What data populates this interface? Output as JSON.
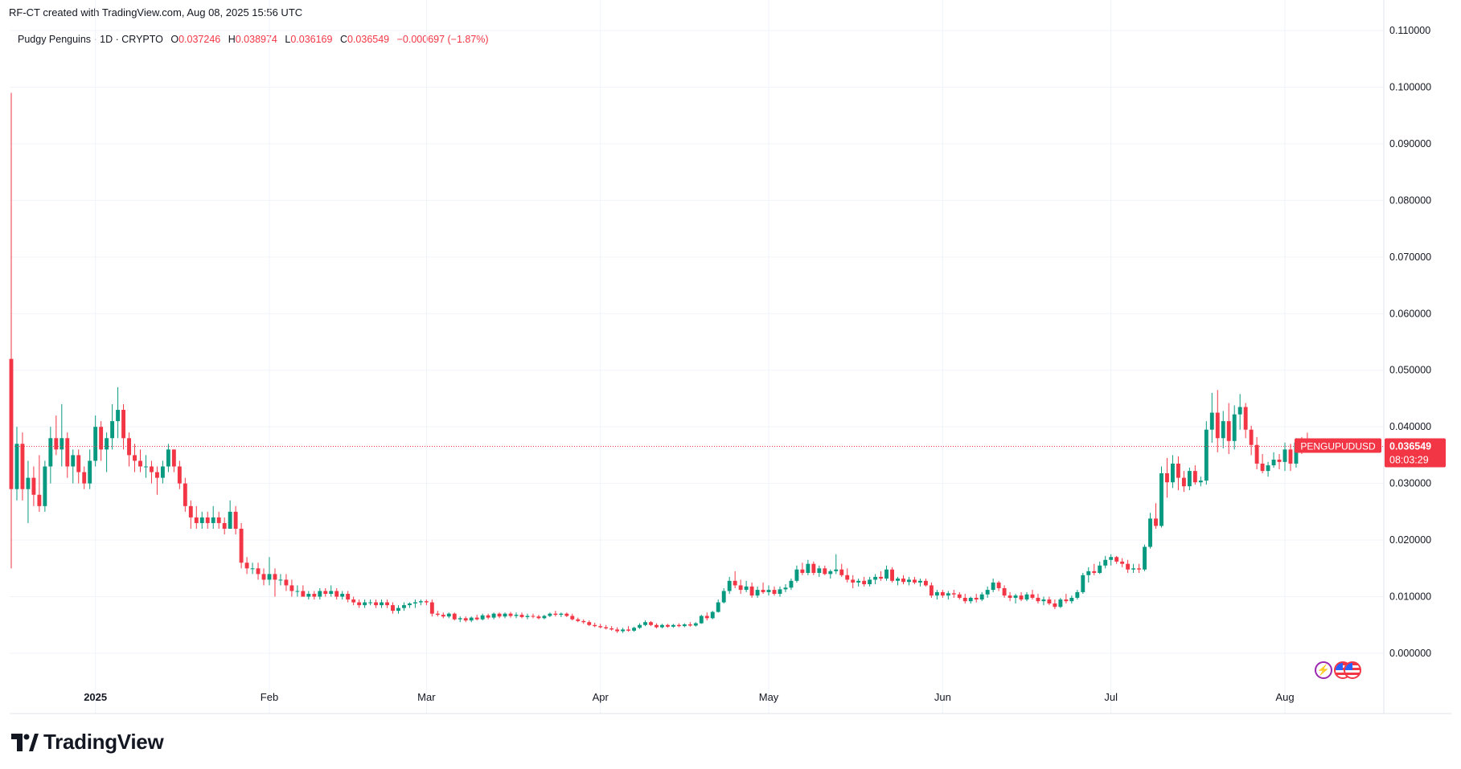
{
  "header": {
    "credit": "RF-CT created with TradingView.com, Aug 08, 2025 15:56 UTC"
  },
  "legend": {
    "symbol": "Pudgy Penguins · 1D · CRYPTO",
    "open_label": "O",
    "open": "0.037246",
    "high_label": "H",
    "high": "0.038974",
    "low_label": "L",
    "low": "0.036169",
    "close_label": "C",
    "close": "0.036549",
    "change": "−0.000697 (−1.87%)"
  },
  "price_tag": {
    "ticker": "PENGUPUDUSD",
    "price": "0.036549",
    "countdown": "08:03:29"
  },
  "brand": {
    "name": "TradingView"
  },
  "colors": {
    "up": "#089981",
    "down": "#f23645",
    "grid": "#f0f3fa",
    "axis_text": "#131722",
    "price_line": "#f23645"
  },
  "icons": [
    "lightning-icon",
    "us-flag-icon",
    "us-flag-icon"
  ],
  "chart_data": {
    "type": "candlestick",
    "symbol": "PENGUPUDUSD",
    "interval": "1D",
    "ylim": [
      -0.004,
      0.111
    ],
    "yticks": [
      "0.000000",
      "0.010000",
      "0.020000",
      "0.030000",
      "0.040000",
      "0.050000",
      "0.060000",
      "0.070000",
      "0.080000",
      "0.090000",
      "0.100000",
      "0.110000"
    ],
    "x_labels": [
      {
        "label": "2025",
        "date": "2025-01-01"
      },
      {
        "label": "Feb",
        "date": "2025-02-01"
      },
      {
        "label": "Mar",
        "date": "2025-03-01"
      },
      {
        "label": "Apr",
        "date": "2025-04-01"
      },
      {
        "label": "May",
        "date": "2025-05-01"
      },
      {
        "label": "Jun",
        "date": "2025-06-01"
      },
      {
        "label": "Jul",
        "date": "2025-07-01"
      },
      {
        "label": "Aug",
        "date": "2025-08-01"
      }
    ],
    "first_date": "2024-12-17",
    "last_price": 0.036549,
    "ohlc": [
      [
        0.052,
        0.099,
        0.015,
        0.029
      ],
      [
        0.029,
        0.04,
        0.027,
        0.037
      ],
      [
        0.037,
        0.039,
        0.027,
        0.029
      ],
      [
        0.029,
        0.034,
        0.023,
        0.031
      ],
      [
        0.031,
        0.033,
        0.026,
        0.028
      ],
      [
        0.028,
        0.035,
        0.025,
        0.026
      ],
      [
        0.026,
        0.034,
        0.025,
        0.033
      ],
      [
        0.033,
        0.04,
        0.03,
        0.038
      ],
      [
        0.038,
        0.042,
        0.035,
        0.036
      ],
      [
        0.036,
        0.044,
        0.033,
        0.038
      ],
      [
        0.038,
        0.039,
        0.031,
        0.033
      ],
      [
        0.033,
        0.036,
        0.03,
        0.035
      ],
      [
        0.035,
        0.036,
        0.03,
        0.032
      ],
      [
        0.032,
        0.033,
        0.029,
        0.03
      ],
      [
        0.03,
        0.036,
        0.029,
        0.034
      ],
      [
        0.034,
        0.042,
        0.033,
        0.04
      ],
      [
        0.04,
        0.041,
        0.034,
        0.036
      ],
      [
        0.036,
        0.039,
        0.032,
        0.038
      ],
      [
        0.038,
        0.044,
        0.036,
        0.041
      ],
      [
        0.041,
        0.047,
        0.038,
        0.043
      ],
      [
        0.043,
        0.044,
        0.036,
        0.038
      ],
      [
        0.038,
        0.039,
        0.033,
        0.035
      ],
      [
        0.035,
        0.037,
        0.032,
        0.034
      ],
      [
        0.034,
        0.036,
        0.032,
        0.033
      ],
      [
        0.033,
        0.035,
        0.031,
        0.033
      ],
      [
        0.033,
        0.034,
        0.03,
        0.032
      ],
      [
        0.032,
        0.033,
        0.028,
        0.031
      ],
      [
        0.031,
        0.034,
        0.03,
        0.033
      ],
      [
        0.033,
        0.037,
        0.032,
        0.036
      ],
      [
        0.036,
        0.036,
        0.032,
        0.033
      ],
      [
        0.033,
        0.034,
        0.029,
        0.03
      ],
      [
        0.03,
        0.031,
        0.025,
        0.026
      ],
      [
        0.026,
        0.027,
        0.022,
        0.024
      ],
      [
        0.024,
        0.026,
        0.022,
        0.023
      ],
      [
        0.023,
        0.025,
        0.022,
        0.024
      ],
      [
        0.024,
        0.025,
        0.022,
        0.023
      ],
      [
        0.023,
        0.026,
        0.022,
        0.024
      ],
      [
        0.024,
        0.025,
        0.022,
        0.023
      ],
      [
        0.023,
        0.024,
        0.021,
        0.022
      ],
      [
        0.022,
        0.027,
        0.022,
        0.025
      ],
      [
        0.025,
        0.026,
        0.021,
        0.022
      ],
      [
        0.022,
        0.023,
        0.015,
        0.016
      ],
      [
        0.016,
        0.017,
        0.014,
        0.015
      ],
      [
        0.015,
        0.016,
        0.014,
        0.015
      ],
      [
        0.015,
        0.016,
        0.013,
        0.014
      ],
      [
        0.014,
        0.015,
        0.012,
        0.013
      ],
      [
        0.013,
        0.017,
        0.012,
        0.014
      ],
      [
        0.014,
        0.015,
        0.01,
        0.013
      ],
      [
        0.013,
        0.014,
        0.012,
        0.013
      ],
      [
        0.013,
        0.014,
        0.011,
        0.012
      ],
      [
        0.012,
        0.013,
        0.01,
        0.011
      ],
      [
        0.011,
        0.012,
        0.01,
        0.011
      ],
      [
        0.011,
        0.012,
        0.01,
        0.01
      ],
      [
        0.01,
        0.011,
        0.0095,
        0.0105
      ],
      [
        0.0105,
        0.011,
        0.0095,
        0.01
      ],
      [
        0.01,
        0.0115,
        0.0095,
        0.011
      ],
      [
        0.011,
        0.0115,
        0.01,
        0.0105
      ],
      [
        0.0105,
        0.012,
        0.01,
        0.011
      ],
      [
        0.011,
        0.0115,
        0.0095,
        0.01
      ],
      [
        0.01,
        0.011,
        0.0095,
        0.0105
      ],
      [
        0.0105,
        0.011,
        0.009,
        0.0095
      ],
      [
        0.0095,
        0.01,
        0.0085,
        0.009
      ],
      [
        0.009,
        0.0095,
        0.008,
        0.0085
      ],
      [
        0.0085,
        0.0095,
        0.008,
        0.009
      ],
      [
        0.009,
        0.0095,
        0.0085,
        0.009
      ],
      [
        0.009,
        0.0095,
        0.008,
        0.0085
      ],
      [
        0.0085,
        0.0095,
        0.008,
        0.009
      ],
      [
        0.009,
        0.0095,
        0.008,
        0.0085
      ],
      [
        0.0085,
        0.009,
        0.007,
        0.0075
      ],
      [
        0.0075,
        0.0085,
        0.007,
        0.008
      ],
      [
        0.008,
        0.009,
        0.0075,
        0.0085
      ],
      [
        0.0085,
        0.009,
        0.008,
        0.0088
      ],
      [
        0.0088,
        0.0095,
        0.008,
        0.009
      ],
      [
        0.009,
        0.0095,
        0.0085,
        0.0092
      ],
      [
        0.0092,
        0.0095,
        0.0085,
        0.009
      ],
      [
        0.009,
        0.0095,
        0.0065,
        0.007
      ],
      [
        0.007,
        0.0075,
        0.0065,
        0.0068
      ],
      [
        0.0068,
        0.0072,
        0.0062,
        0.0065
      ],
      [
        0.0065,
        0.0072,
        0.0062,
        0.007
      ],
      [
        0.007,
        0.0072,
        0.0058,
        0.006
      ],
      [
        0.006,
        0.0065,
        0.0055,
        0.0062
      ],
      [
        0.0062,
        0.0065,
        0.0055,
        0.0058
      ],
      [
        0.0058,
        0.0065,
        0.0055,
        0.0063
      ],
      [
        0.0063,
        0.0068,
        0.0058,
        0.006
      ],
      [
        0.006,
        0.007,
        0.0058,
        0.0067
      ],
      [
        0.0067,
        0.007,
        0.006,
        0.0063
      ],
      [
        0.0063,
        0.0072,
        0.006,
        0.007
      ],
      [
        0.007,
        0.0072,
        0.0062,
        0.0065
      ],
      [
        0.0065,
        0.0072,
        0.0062,
        0.007
      ],
      [
        0.007,
        0.0073,
        0.0063,
        0.0066
      ],
      [
        0.0066,
        0.0072,
        0.0062,
        0.0068
      ],
      [
        0.0068,
        0.0072,
        0.0062,
        0.0064
      ],
      [
        0.0064,
        0.007,
        0.006,
        0.0066
      ],
      [
        0.0066,
        0.007,
        0.0062,
        0.0065
      ],
      [
        0.0065,
        0.0068,
        0.006,
        0.0062
      ],
      [
        0.0062,
        0.0068,
        0.006,
        0.0066
      ],
      [
        0.0066,
        0.0072,
        0.0064,
        0.007
      ],
      [
        0.007,
        0.0075,
        0.0065,
        0.0068
      ],
      [
        0.0068,
        0.0072,
        0.0064,
        0.007
      ],
      [
        0.007,
        0.0072,
        0.0064,
        0.0066
      ],
      [
        0.0066,
        0.007,
        0.0058,
        0.006
      ],
      [
        0.006,
        0.0063,
        0.0055,
        0.0057
      ],
      [
        0.0057,
        0.006,
        0.0052,
        0.0055
      ],
      [
        0.0055,
        0.0058,
        0.0048,
        0.005
      ],
      [
        0.005,
        0.0054,
        0.0046,
        0.0048
      ],
      [
        0.0048,
        0.0052,
        0.0044,
        0.0046
      ],
      [
        0.0046,
        0.005,
        0.0042,
        0.0044
      ],
      [
        0.0044,
        0.0048,
        0.004,
        0.0042
      ],
      [
        0.0042,
        0.0046,
        0.0036,
        0.0039
      ],
      [
        0.0039,
        0.0045,
        0.0036,
        0.0042
      ],
      [
        0.0042,
        0.0048,
        0.0038,
        0.004
      ],
      [
        0.004,
        0.0047,
        0.0038,
        0.0045
      ],
      [
        0.0045,
        0.0053,
        0.0043,
        0.005
      ],
      [
        0.005,
        0.0058,
        0.0048,
        0.0055
      ],
      [
        0.0055,
        0.0057,
        0.0048,
        0.005
      ],
      [
        0.005,
        0.0053,
        0.0044,
        0.0046
      ],
      [
        0.0046,
        0.0052,
        0.0044,
        0.005
      ],
      [
        0.005,
        0.0052,
        0.0045,
        0.0047
      ],
      [
        0.0047,
        0.0052,
        0.0045,
        0.005
      ],
      [
        0.005,
        0.0053,
        0.0046,
        0.0048
      ],
      [
        0.0048,
        0.0053,
        0.0046,
        0.0051
      ],
      [
        0.0051,
        0.0055,
        0.0047,
        0.0049
      ],
      [
        0.0049,
        0.0055,
        0.0047,
        0.0053
      ],
      [
        0.0053,
        0.0068,
        0.0052,
        0.0066
      ],
      [
        0.0066,
        0.0072,
        0.0058,
        0.0062
      ],
      [
        0.0062,
        0.0075,
        0.006,
        0.0073
      ],
      [
        0.0073,
        0.0095,
        0.0072,
        0.009
      ],
      [
        0.009,
        0.0115,
        0.0088,
        0.011
      ],
      [
        0.011,
        0.0135,
        0.0105,
        0.0128
      ],
      [
        0.0128,
        0.0145,
        0.0115,
        0.012
      ],
      [
        0.012,
        0.013,
        0.0105,
        0.0112
      ],
      [
        0.0112,
        0.0128,
        0.0108,
        0.0118
      ],
      [
        0.0118,
        0.0125,
        0.0098,
        0.0102
      ],
      [
        0.0102,
        0.0118,
        0.0098,
        0.0112
      ],
      [
        0.0112,
        0.0125,
        0.0105,
        0.0108
      ],
      [
        0.0108,
        0.012,
        0.0102,
        0.0112
      ],
      [
        0.0112,
        0.0118,
        0.0102,
        0.0105
      ],
      [
        0.0105,
        0.0118,
        0.01,
        0.0113
      ],
      [
        0.0113,
        0.0122,
        0.0108,
        0.0116
      ],
      [
        0.0116,
        0.0132,
        0.0112,
        0.0128
      ],
      [
        0.0128,
        0.0155,
        0.0125,
        0.0148
      ],
      [
        0.0148,
        0.016,
        0.0138,
        0.0142
      ],
      [
        0.0142,
        0.0165,
        0.0138,
        0.0158
      ],
      [
        0.0158,
        0.0162,
        0.0138,
        0.0142
      ],
      [
        0.0142,
        0.0155,
        0.0135,
        0.015
      ],
      [
        0.015,
        0.0155,
        0.0138,
        0.014
      ],
      [
        0.014,
        0.0148,
        0.0132,
        0.0145
      ],
      [
        0.0145,
        0.0175,
        0.014,
        0.0148
      ],
      [
        0.0148,
        0.0158,
        0.0135,
        0.0138
      ],
      [
        0.0138,
        0.015,
        0.0125,
        0.013
      ],
      [
        0.013,
        0.0138,
        0.0115,
        0.0125
      ],
      [
        0.0125,
        0.0132,
        0.0118,
        0.0128
      ],
      [
        0.0128,
        0.0135,
        0.0118,
        0.0122
      ],
      [
        0.0122,
        0.0135,
        0.0118,
        0.013
      ],
      [
        0.013,
        0.014,
        0.0122,
        0.0135
      ],
      [
        0.0135,
        0.0145,
        0.0128,
        0.0132
      ],
      [
        0.0132,
        0.0155,
        0.0128,
        0.0148
      ],
      [
        0.0148,
        0.0152,
        0.0125,
        0.0128
      ],
      [
        0.0128,
        0.0135,
        0.012,
        0.0132
      ],
      [
        0.0132,
        0.0138,
        0.0122,
        0.0126
      ],
      [
        0.0126,
        0.0135,
        0.012,
        0.013
      ],
      [
        0.013,
        0.0135,
        0.0122,
        0.0125
      ],
      [
        0.0125,
        0.0132,
        0.0118,
        0.0128
      ],
      [
        0.0128,
        0.0132,
        0.0118,
        0.012
      ],
      [
        0.012,
        0.0125,
        0.0098,
        0.0102
      ],
      [
        0.0102,
        0.0112,
        0.0095,
        0.0108
      ],
      [
        0.0108,
        0.0112,
        0.0098,
        0.0102
      ],
      [
        0.0102,
        0.011,
        0.0095,
        0.0106
      ],
      [
        0.0106,
        0.0112,
        0.0098,
        0.0104
      ],
      [
        0.0104,
        0.0108,
        0.0095,
        0.0098
      ],
      [
        0.0098,
        0.0105,
        0.0088,
        0.0092
      ],
      [
        0.0092,
        0.01,
        0.0088,
        0.0098
      ],
      [
        0.0098,
        0.0105,
        0.009,
        0.0095
      ],
      [
        0.0095,
        0.0108,
        0.0092,
        0.0104
      ],
      [
        0.0104,
        0.0118,
        0.0098,
        0.0112
      ],
      [
        0.0112,
        0.0132,
        0.0108,
        0.0125
      ],
      [
        0.0125,
        0.0128,
        0.011,
        0.0115
      ],
      [
        0.0115,
        0.012,
        0.0098,
        0.0102
      ],
      [
        0.0102,
        0.0108,
        0.0092,
        0.0098
      ],
      [
        0.0098,
        0.0105,
        0.0088,
        0.0102
      ],
      [
        0.0102,
        0.0108,
        0.0092,
        0.0095
      ],
      [
        0.0095,
        0.0108,
        0.0092,
        0.0104
      ],
      [
        0.0104,
        0.0112,
        0.0095,
        0.0098
      ],
      [
        0.0098,
        0.0105,
        0.0088,
        0.0092
      ],
      [
        0.0092,
        0.01,
        0.0085,
        0.0095
      ],
      [
        0.0095,
        0.01,
        0.0085,
        0.0088
      ],
      [
        0.0088,
        0.0095,
        0.0078,
        0.0082
      ],
      [
        0.0082,
        0.0098,
        0.008,
        0.0095
      ],
      [
        0.0095,
        0.0105,
        0.0088,
        0.0092
      ],
      [
        0.0092,
        0.0102,
        0.0088,
        0.0098
      ],
      [
        0.0098,
        0.0112,
        0.0095,
        0.0108
      ],
      [
        0.0108,
        0.0142,
        0.0105,
        0.0138
      ],
      [
        0.0138,
        0.0152,
        0.0125,
        0.0145
      ],
      [
        0.0145,
        0.0158,
        0.0138,
        0.0142
      ],
      [
        0.0142,
        0.0162,
        0.014,
        0.0155
      ],
      [
        0.0155,
        0.0172,
        0.015,
        0.0165
      ],
      [
        0.0165,
        0.0175,
        0.0155,
        0.017
      ],
      [
        0.017,
        0.0172,
        0.0158,
        0.0162
      ],
      [
        0.0162,
        0.0168,
        0.0152,
        0.0158
      ],
      [
        0.0158,
        0.0165,
        0.0142,
        0.0148
      ],
      [
        0.0148,
        0.0158,
        0.0142,
        0.015
      ],
      [
        0.015,
        0.0158,
        0.0142,
        0.0148
      ],
      [
        0.0148,
        0.0192,
        0.0145,
        0.0188
      ],
      [
        0.0188,
        0.0248,
        0.0185,
        0.0238
      ],
      [
        0.0238,
        0.0265,
        0.022,
        0.0225
      ],
      [
        0.0225,
        0.033,
        0.0222,
        0.0318
      ],
      [
        0.0318,
        0.0345,
        0.0275,
        0.0302
      ],
      [
        0.0302,
        0.035,
        0.0292,
        0.0335
      ],
      [
        0.0335,
        0.0348,
        0.0288,
        0.031
      ],
      [
        0.031,
        0.0322,
        0.0285,
        0.0295
      ],
      [
        0.0295,
        0.0328,
        0.0288,
        0.0322
      ],
      [
        0.0322,
        0.0332,
        0.0298,
        0.0302
      ],
      [
        0.0302,
        0.0312,
        0.0295,
        0.0305
      ],
      [
        0.0305,
        0.041,
        0.0298,
        0.0395
      ],
      [
        0.0395,
        0.046,
        0.0372,
        0.0425
      ],
      [
        0.0425,
        0.0465,
        0.0355,
        0.038
      ],
      [
        0.038,
        0.0428,
        0.0362,
        0.041
      ],
      [
        0.041,
        0.0442,
        0.0352,
        0.0375
      ],
      [
        0.0375,
        0.0438,
        0.036,
        0.0422
      ],
      [
        0.0422,
        0.0458,
        0.0395,
        0.0435
      ],
      [
        0.0435,
        0.0442,
        0.038,
        0.0395
      ],
      [
        0.0395,
        0.0402,
        0.035,
        0.0368
      ],
      [
        0.0368,
        0.0382,
        0.0325,
        0.0335
      ],
      [
        0.0335,
        0.0352,
        0.0318,
        0.0322
      ],
      [
        0.0322,
        0.0338,
        0.0312,
        0.0332
      ],
      [
        0.0332,
        0.0355,
        0.0328,
        0.0342
      ],
      [
        0.0342,
        0.0352,
        0.0325,
        0.0338
      ],
      [
        0.0338,
        0.0372,
        0.0322,
        0.036
      ],
      [
        0.036,
        0.037,
        0.0322,
        0.0335
      ],
      [
        0.0335,
        0.038,
        0.0328,
        0.0372
      ],
      [
        0.0372,
        0.0382,
        0.0352,
        0.0364
      ],
      [
        0.037246,
        0.038974,
        0.036169,
        0.036549
      ]
    ]
  }
}
